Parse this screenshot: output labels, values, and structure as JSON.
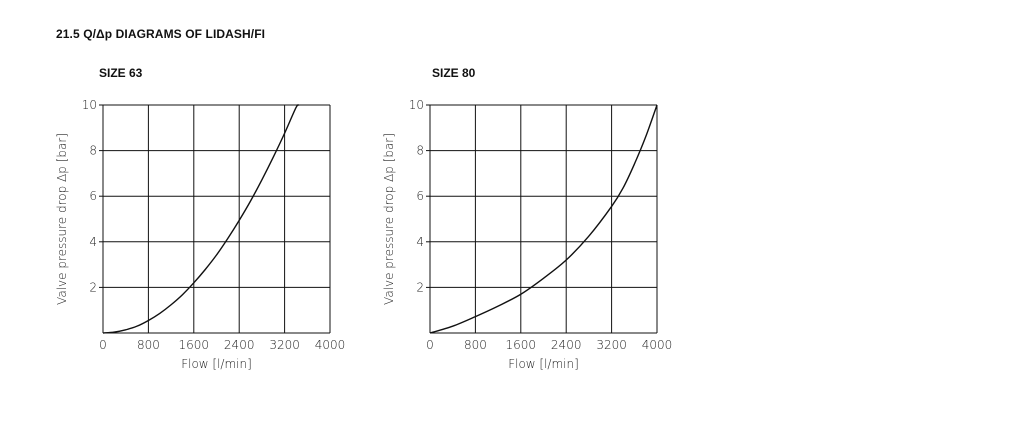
{
  "section_title": "21.5  Q/Δp DIAGRAMS OF LIDASH/FI",
  "colors": {
    "grid": "#111111",
    "curve": "#111111"
  },
  "chart_data": [
    {
      "type": "line",
      "title": "SIZE 63",
      "xlabel": "Flow [l/min]",
      "ylabel": "Valve pressure drop Δp [bar]",
      "xlim": [
        0,
        4000
      ],
      "ylim": [
        0,
        10
      ],
      "xticks": [
        0,
        800,
        1600,
        2400,
        3200,
        4000
      ],
      "xtick_labels": [
        "0",
        "800",
        "1600",
        "2400",
        "3200",
        "4000"
      ],
      "yticks": [
        2,
        4,
        6,
        8,
        10
      ],
      "ytick_labels": [
        "2",
        "4",
        "6",
        "8",
        "10"
      ],
      "grid": true,
      "series": [
        {
          "name": "SIZE 63",
          "x": [
            0,
            200,
            400,
            600,
            800,
            1000,
            1200,
            1400,
            1600,
            1800,
            2000,
            2200,
            2400,
            2600,
            2800,
            3000,
            3200,
            3400,
            3450
          ],
          "y": [
            0,
            0.04,
            0.14,
            0.3,
            0.55,
            0.86,
            1.24,
            1.68,
            2.2,
            2.78,
            3.42,
            4.15,
            4.94,
            5.79,
            6.72,
            7.71,
            8.76,
            9.88,
            10.0
          ]
        }
      ]
    },
    {
      "type": "line",
      "title": "SIZE 80",
      "xlabel": "Flow [l/min]",
      "ylabel": "Valve pressure drop Δp [bar]",
      "xlim": [
        0,
        4000
      ],
      "ylim": [
        0,
        10
      ],
      "xticks": [
        0,
        800,
        1600,
        2400,
        3200,
        4000
      ],
      "xtick_labels": [
        "0",
        "800",
        "1600",
        "2400",
        "3200",
        "4000"
      ],
      "yticks": [
        2,
        4,
        6,
        8,
        10
      ],
      "ytick_labels": [
        "2",
        "4",
        "6",
        "8",
        "10"
      ],
      "grid": true,
      "series": [
        {
          "name": "SIZE 80",
          "x": [
            0,
            400,
            800,
            1200,
            1600,
            2000,
            2400,
            2800,
            3200,
            3400,
            3600,
            3800,
            4000
          ],
          "y": [
            0,
            0.3,
            0.72,
            1.18,
            1.7,
            2.4,
            3.2,
            4.25,
            5.55,
            6.35,
            7.4,
            8.6,
            10.0
          ]
        }
      ]
    }
  ]
}
